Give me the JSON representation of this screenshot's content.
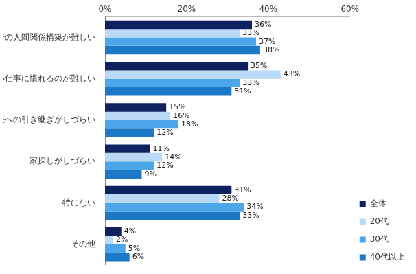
{
  "chart_data": {
    "type": "bar",
    "orientation": "horizontal",
    "categories": [
      "転勤先での人間関係構築が難しい",
      "新しい仕事に慣れるのが難しい",
      "後任への引き継ぎがしづらい",
      "家探しがしづらい",
      "特にない",
      "その他"
    ],
    "series": [
      {
        "name": "全体",
        "color": "#0e2260",
        "values": [
          36,
          35,
          15,
          11,
          31,
          4
        ],
        "value_labels": [
          "36%",
          "35%",
          "15%",
          "11%",
          "31%",
          "4%"
        ]
      },
      {
        "name": "20代",
        "color": "#b9d9f6",
        "values": [
          33,
          43,
          16,
          14,
          28,
          2
        ],
        "value_labels": [
          "33%",
          "43%",
          "16%",
          "14%",
          "28%",
          "2%"
        ]
      },
      {
        "name": "30代",
        "color": "#4ba7ea",
        "values": [
          37,
          33,
          18,
          12,
          34,
          5
        ],
        "value_labels": [
          "37%",
          "33%",
          "18%",
          "12%",
          "34%",
          "5%"
        ]
      },
      {
        "name": "40代以上",
        "color": "#1b79c7",
        "values": [
          38,
          31,
          12,
          9,
          33,
          6
        ],
        "value_labels": [
          "38%",
          "31%",
          "12%",
          "9%",
          "33%",
          "6%"
        ]
      }
    ],
    "xlim": [
      0,
      60
    ],
    "xticks": [
      {
        "value": 0,
        "label": "0%"
      },
      {
        "value": 20,
        "label": "20%"
      },
      {
        "value": 40,
        "label": "40%"
      },
      {
        "value": 60,
        "label": "60%"
      }
    ],
    "grid": false,
    "legend": "lower right",
    "data_labels": true
  }
}
